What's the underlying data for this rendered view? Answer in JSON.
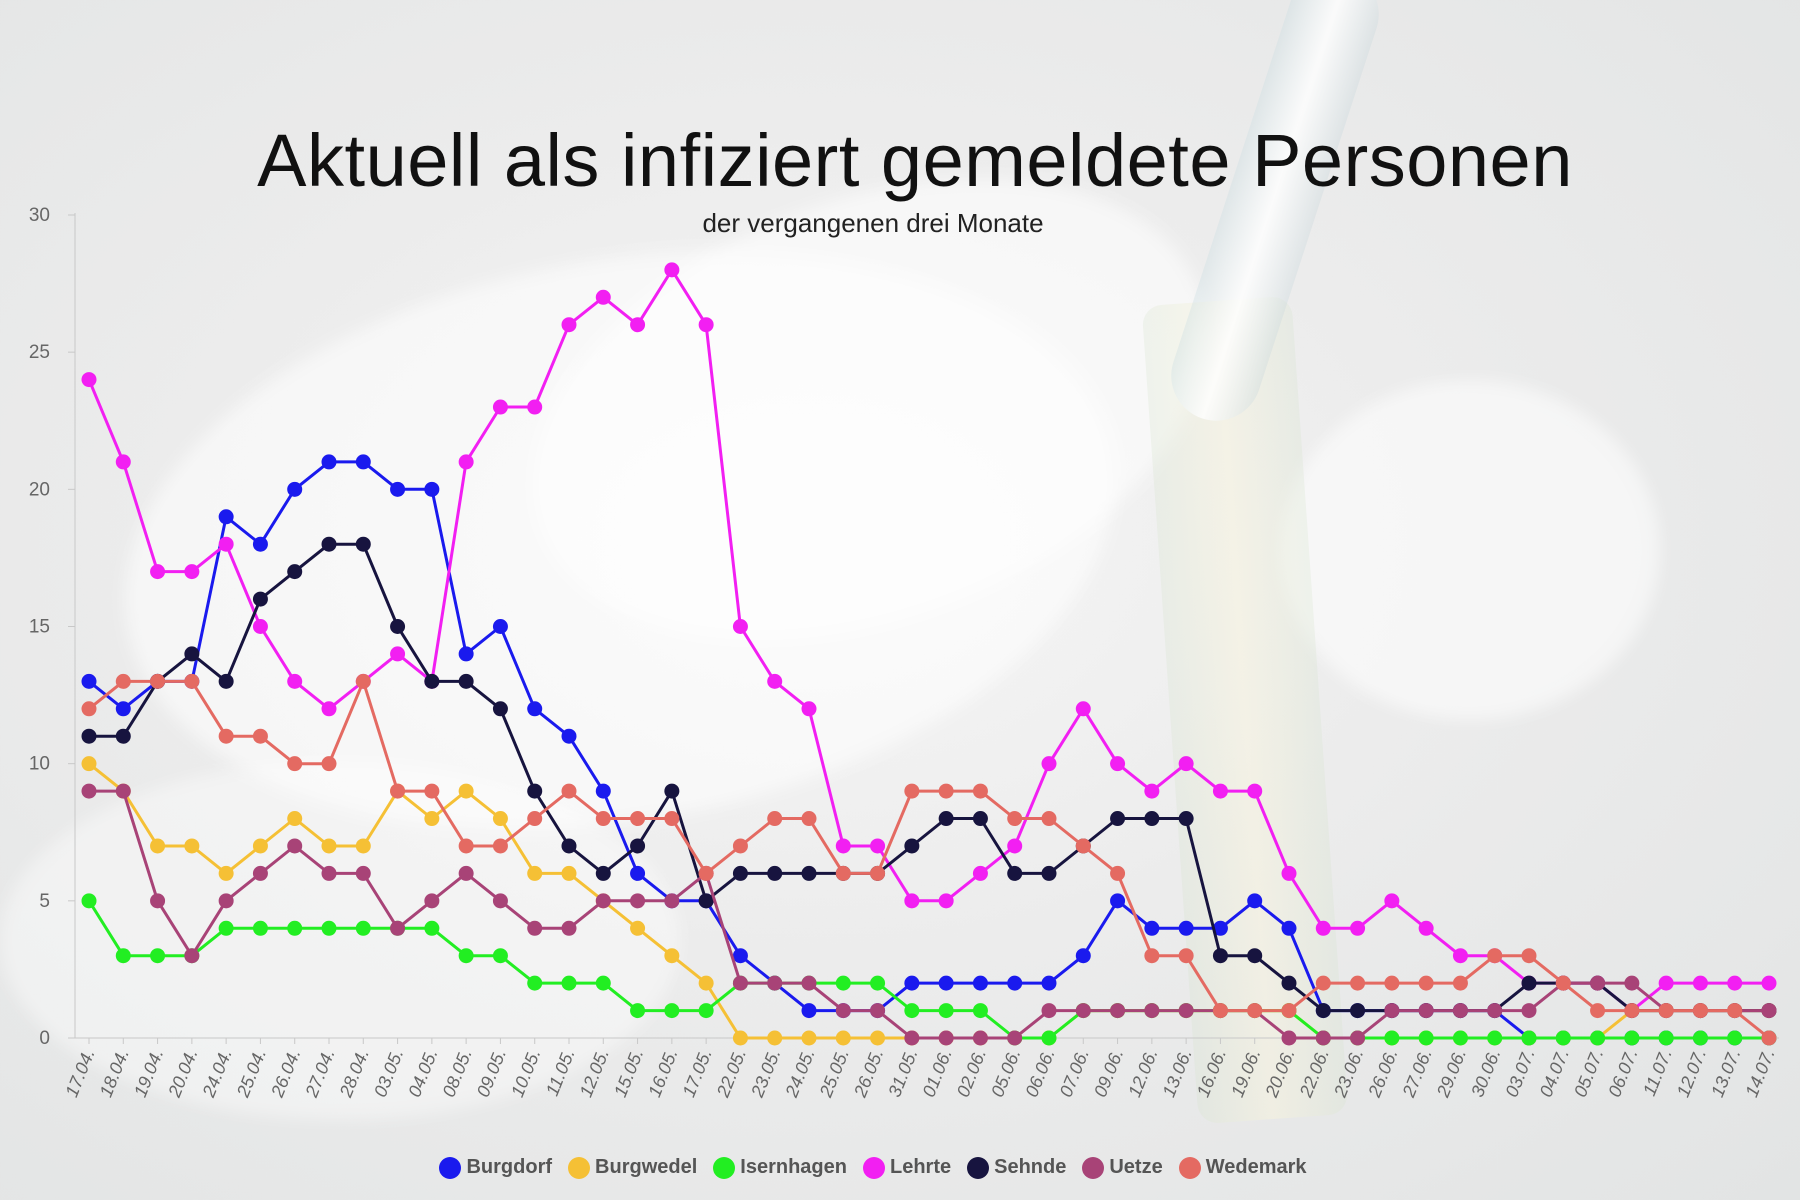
{
  "title": "Aktuell als infiziert gemeldete Personen",
  "subtitle": "der vergangenen drei Monate",
  "chart_data": {
    "type": "line",
    "title": "Aktuell als infiziert gemeldete Personen",
    "subtitle": "der vergangenen drei Monate",
    "xlabel": "",
    "ylabel": "",
    "ylim": [
      0,
      30
    ],
    "yticks": [
      0,
      5,
      10,
      15,
      20,
      25,
      30
    ],
    "grid": false,
    "legend_position": "bottom",
    "categories": [
      "17.04.",
      "18.04.",
      "19.04.",
      "20.04.",
      "24.04.",
      "25.04.",
      "26.04.",
      "27.04.",
      "28.04.",
      "03.05.",
      "04.05.",
      "08.05.",
      "09.05.",
      "10.05.",
      "11.05.",
      "12.05.",
      "15.05.",
      "16.05.",
      "17.05.",
      "22.05.",
      "23.05.",
      "24.05.",
      "25.05.",
      "26.05.",
      "31.05.",
      "01.06.",
      "02.06.",
      "05.06.",
      "06.06.",
      "07.06.",
      "09.06.",
      "12.06.",
      "13.06.",
      "16.06.",
      "19.06.",
      "20.06.",
      "22.06.",
      "23.06.",
      "26.06.",
      "27.06.",
      "29.06.",
      "30.06.",
      "03.07.",
      "04.07.",
      "05.07.",
      "06.07.",
      "11.07.",
      "12.07.",
      "13.07.",
      "14.07."
    ],
    "series": [
      {
        "name": "Burgdorf",
        "color": "#1a1aee",
        "values": [
          13,
          12,
          13,
          13,
          19,
          18,
          20,
          21,
          21,
          20,
          20,
          14,
          15,
          12,
          11,
          9,
          6,
          5,
          5,
          3,
          2,
          1,
          1,
          1,
          2,
          2,
          2,
          2,
          2,
          3,
          5,
          4,
          4,
          4,
          5,
          4,
          1,
          1,
          1,
          1,
          1,
          1,
          0,
          0,
          0,
          0,
          0,
          0,
          0,
          0
        ]
      },
      {
        "name": "Burgwedel",
        "color": "#f5c035",
        "values": [
          10,
          9,
          7,
          7,
          6,
          7,
          8,
          7,
          7,
          9,
          8,
          9,
          8,
          6,
          6,
          5,
          4,
          3,
          2,
          0,
          0,
          0,
          0,
          0,
          0,
          0,
          0,
          0,
          0,
          1,
          1,
          1,
          1,
          1,
          1,
          1,
          0,
          0,
          0,
          0,
          0,
          0,
          0,
          0,
          0,
          1,
          1,
          1,
          1,
          1
        ]
      },
      {
        "name": "Isernhagen",
        "color": "#22ee22",
        "values": [
          5,
          3,
          3,
          3,
          4,
          4,
          4,
          4,
          4,
          4,
          4,
          3,
          3,
          2,
          2,
          2,
          1,
          1,
          1,
          2,
          2,
          2,
          2,
          2,
          1,
          1,
          1,
          0,
          0,
          1,
          1,
          1,
          1,
          1,
          1,
          1,
          0,
          0,
          0,
          0,
          0,
          0,
          0,
          0,
          0,
          0,
          0,
          0,
          0,
          0
        ]
      },
      {
        "name": "Lehrte",
        "color": "#f21ff2",
        "values": [
          24,
          21,
          17,
          17,
          18,
          15,
          13,
          12,
          13,
          14,
          13,
          21,
          23,
          23,
          26,
          27,
          26,
          28,
          26,
          15,
          13,
          12,
          7,
          7,
          5,
          5,
          6,
          7,
          10,
          12,
          10,
          9,
          10,
          9,
          9,
          6,
          4,
          4,
          5,
          4,
          3,
          3,
          2,
          2,
          2,
          1,
          2,
          2,
          2,
          2
        ]
      },
      {
        "name": "Sehnde",
        "color": "#17143f",
        "values": [
          11,
          11,
          13,
          14,
          13,
          16,
          17,
          18,
          18,
          15,
          13,
          13,
          12,
          9,
          7,
          6,
          7,
          9,
          5,
          6,
          6,
          6,
          6,
          6,
          7,
          8,
          8,
          6,
          6,
          7,
          8,
          8,
          8,
          3,
          3,
          2,
          1,
          1,
          1,
          1,
          1,
          1,
          2,
          2,
          2,
          1,
          1,
          1,
          1,
          1
        ]
      },
      {
        "name": "Uetze",
        "color": "#a84377",
        "values": [
          9,
          9,
          5,
          3,
          5,
          6,
          7,
          6,
          6,
          4,
          5,
          6,
          5,
          4,
          4,
          5,
          5,
          5,
          6,
          2,
          2,
          2,
          1,
          1,
          0,
          0,
          0,
          0,
          1,
          1,
          1,
          1,
          1,
          1,
          1,
          0,
          0,
          0,
          1,
          1,
          1,
          1,
          1,
          2,
          2,
          2,
          1,
          1,
          1,
          1
        ]
      },
      {
        "name": "Wedemark",
        "color": "#e46a62",
        "values": [
          12,
          13,
          13,
          13,
          11,
          11,
          10,
          10,
          13,
          9,
          9,
          7,
          7,
          8,
          9,
          8,
          8,
          8,
          6,
          7,
          8,
          8,
          6,
          6,
          9,
          9,
          9,
          8,
          8,
          7,
          6,
          3,
          3,
          1,
          1,
          1,
          2,
          2,
          2,
          2,
          2,
          3,
          3,
          2,
          1,
          1,
          1,
          1,
          1,
          0
        ]
      }
    ]
  }
}
